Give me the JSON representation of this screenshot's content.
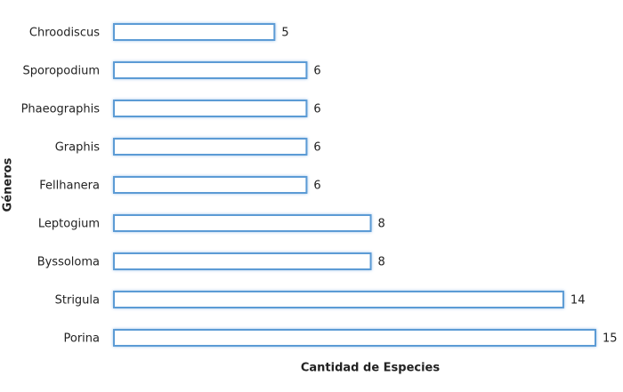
{
  "chart_data": {
    "type": "bar",
    "orientation": "horizontal",
    "categories": [
      "Chroodiscus",
      "Sporopodium",
      "Phaeographis",
      "Graphis",
      "Fellhanera",
      "Leptogium",
      "Byssoloma",
      "Strigula",
      "Porina"
    ],
    "values": [
      5,
      6,
      6,
      6,
      6,
      8,
      8,
      14,
      15
    ],
    "xlabel": "Cantidad de Especies",
    "ylabel": "Géneros",
    "color": "#5b9bd5",
    "xlim": [
      0,
      15
    ]
  }
}
